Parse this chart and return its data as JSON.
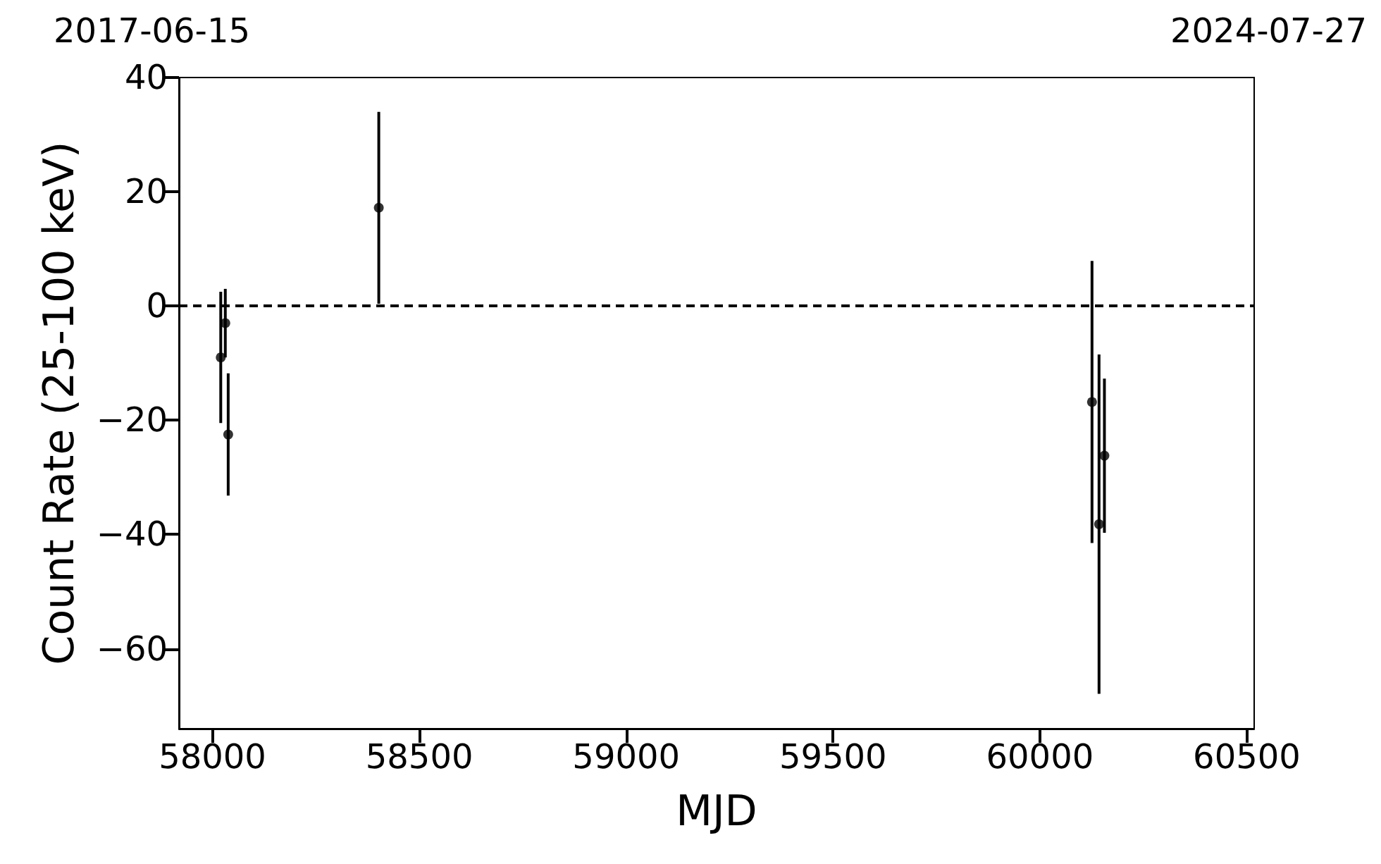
{
  "chart_data": {
    "type": "scatter",
    "xlabel": "MJD",
    "ylabel": "Count Rate (25-100 keV)",
    "x": [
      58020,
      58031,
      58038,
      58402,
      60126,
      60143,
      60156
    ],
    "values": [
      -9.0,
      -3.0,
      -22.5,
      17.2,
      -16.8,
      -38.2,
      -26.2
    ],
    "errors": [
      11.5,
      6.0,
      10.7,
      16.8,
      24.7,
      29.7,
      13.5
    ],
    "color": "#000000",
    "marker": "circle",
    "grid": false,
    "legend": false,
    "xlim": [
      57919,
      60518
    ],
    "xticks": [
      58000,
      58500,
      59000,
      59500,
      60000,
      60500
    ],
    "annotations": [
      "2017-06-15",
      "2024-07-27"
    ],
    "ylim": [
      -74,
      40
    ],
    "yticks": [
      -60,
      -40,
      -20,
      0,
      20,
      40
    ],
    "ref_lines": [
      {
        "axis": "y",
        "value": 0,
        "label": null,
        "color": "#000000",
        "line_style": "dashed"
      }
    ]
  }
}
